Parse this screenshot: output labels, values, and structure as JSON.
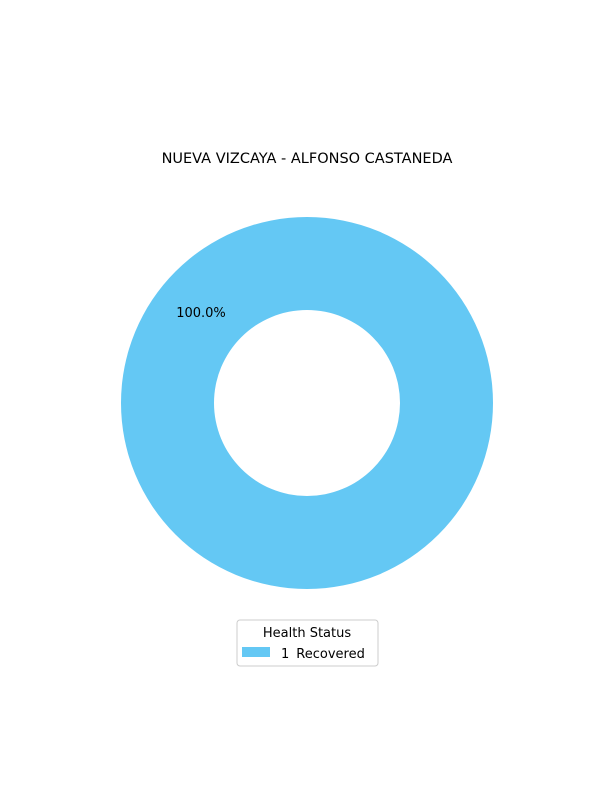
{
  "chart_data": {
    "type": "pie",
    "variant": "donut",
    "title": "NUEVA VIZCAYA - ALFONSO CASTANEDA",
    "slices": [
      {
        "count": 1,
        "label": "Recovered",
        "value": 100.0,
        "pct_label": "100.0%",
        "color": "#64c8f4"
      }
    ],
    "legend": {
      "title": "Health Status",
      "placement": "bottom-center"
    }
  }
}
